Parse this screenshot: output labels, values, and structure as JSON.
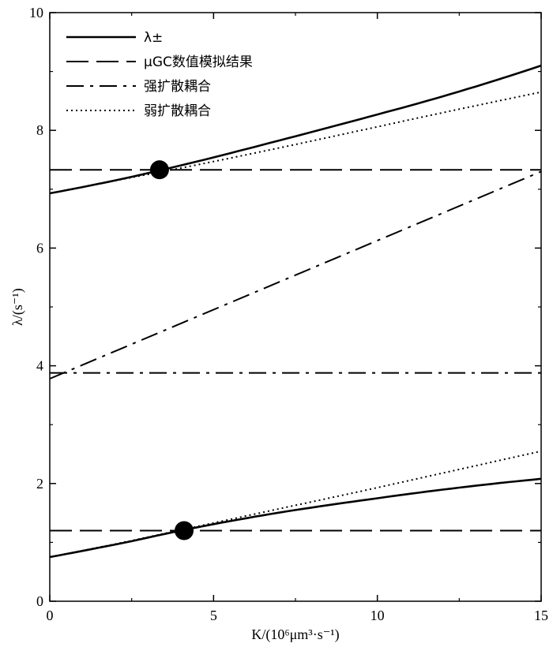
{
  "chart_data": {
    "type": "line",
    "xlabel": "K/(10⁶μm³·s⁻¹)",
    "ylabel": "λ/(s⁻¹)",
    "xlim": [
      0,
      15
    ],
    "ylim": [
      0,
      10
    ],
    "x_ticks": [
      0,
      5,
      10,
      15
    ],
    "y_ticks": [
      0,
      2,
      4,
      6,
      8,
      10
    ],
    "x_tick_labels": [
      "0",
      "5",
      "10",
      "15"
    ],
    "y_tick_labels": [
      "0",
      "2",
      "4",
      "6",
      "8",
      "10"
    ],
    "grid": false,
    "legend_position": "top-left",
    "legend": [
      {
        "label": "λ±",
        "style": "solid"
      },
      {
        "label": "μGC数值模拟结果",
        "style": "dashed"
      },
      {
        "label": "强扩散耦合",
        "style": "dashdot"
      },
      {
        "label": "弱扩散耦合",
        "style": "dotted"
      }
    ],
    "series": [
      {
        "style": "solid",
        "x": [
          0,
          2.5,
          5,
          7.5,
          10,
          12.5,
          15
        ],
        "y": [
          6.93,
          7.21,
          7.54,
          7.9,
          8.27,
          8.66,
          9.1
        ]
      },
      {
        "style": "solid",
        "x": [
          0,
          2.5,
          5,
          7.5,
          10,
          12.5,
          15
        ],
        "y": [
          0.75,
          1.02,
          1.31,
          1.55,
          1.75,
          1.93,
          2.08
        ]
      },
      {
        "style": "dotted",
        "x": [
          0,
          2.5,
          5,
          7.5,
          10,
          12.5,
          15
        ],
        "y": [
          6.93,
          7.2,
          7.47,
          7.76,
          8.06,
          8.36,
          8.65
        ]
      },
      {
        "style": "dotted",
        "x": [
          0,
          2.5,
          5,
          7.5,
          10,
          12.5,
          15
        ],
        "y": [
          0.75,
          1.03,
          1.33,
          1.63,
          1.93,
          2.24,
          2.55
        ]
      },
      {
        "style": "dashed",
        "x": [
          0,
          15
        ],
        "y": [
          7.33,
          7.33
        ]
      },
      {
        "style": "dashed",
        "x": [
          0,
          15
        ],
        "y": [
          1.2,
          1.2
        ]
      },
      {
        "style": "dashdot",
        "x": [
          0,
          15
        ],
        "y": [
          3.78,
          7.3
        ]
      },
      {
        "style": "dashdot",
        "x": [
          0,
          15
        ],
        "y": [
          3.88,
          3.88
        ]
      }
    ],
    "markers": [
      {
        "x": 3.35,
        "y": 7.33
      },
      {
        "x": 4.1,
        "y": 1.2
      }
    ]
  }
}
